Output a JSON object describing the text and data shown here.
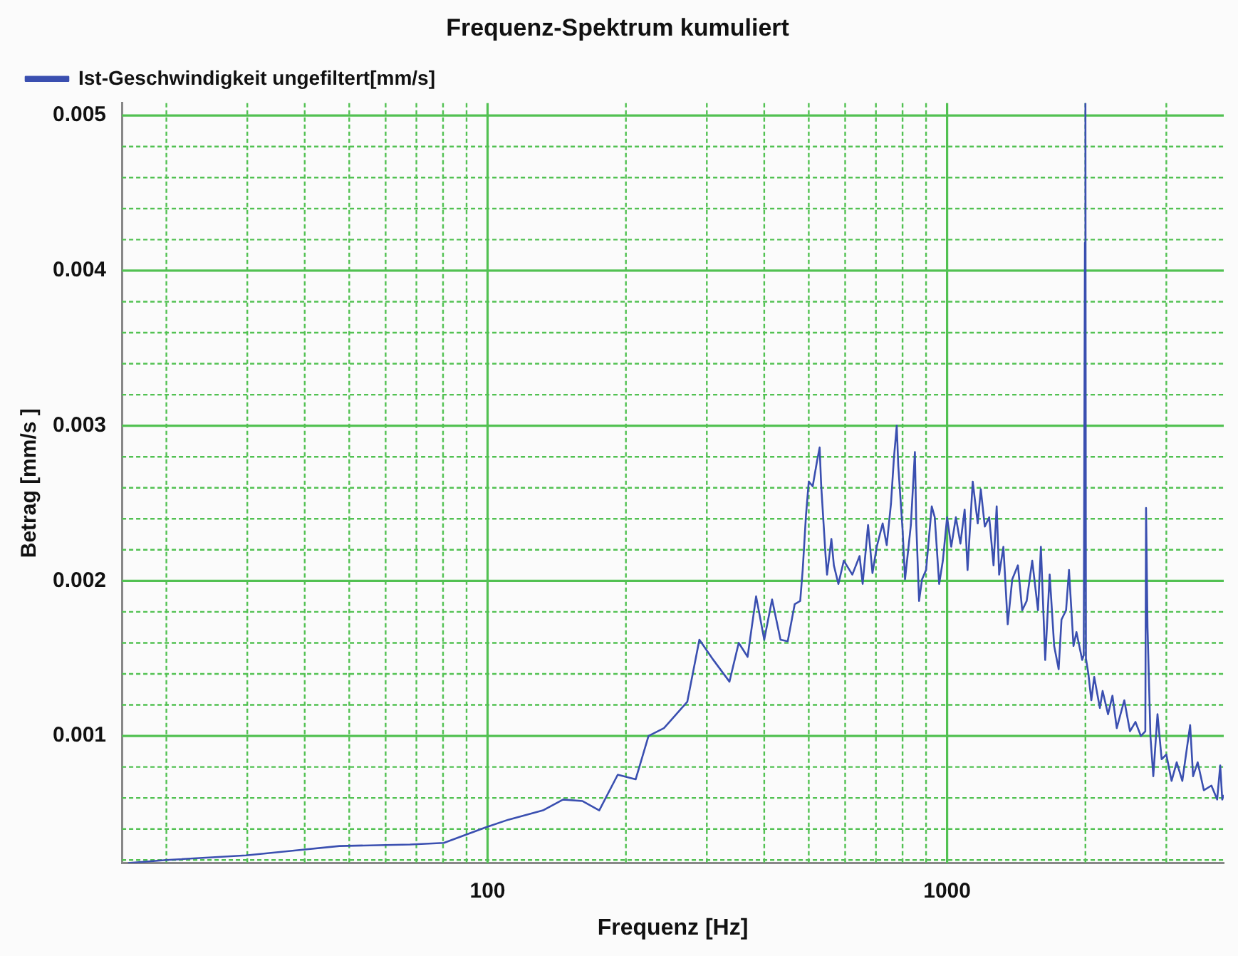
{
  "chart_data": {
    "type": "line",
    "title": "Frequenz-Spektrum kumuliert",
    "xlabel": "Frequenz [Hz]",
    "ylabel": "Betrag [mm/s ]",
    "log": "x",
    "grid": true,
    "legend": "top left",
    "marker": "none",
    "line_style": "solid",
    "xlim": [
      16,
      4000
    ],
    "ylim": [
      0.00018,
      0.00508
    ],
    "xticks": [
      {
        "value": 20,
        "label": null
      },
      {
        "value": 30,
        "label": null
      },
      {
        "value": 40,
        "label": null
      },
      {
        "value": 50,
        "label": null
      },
      {
        "value": 60,
        "label": null
      },
      {
        "value": 70,
        "label": null
      },
      {
        "value": 80,
        "label": null
      },
      {
        "value": 90,
        "label": null
      },
      100,
      {
        "value": 200,
        "label": null
      },
      {
        "value": 300,
        "label": null
      },
      {
        "value": 400,
        "label": null
      },
      {
        "value": 500,
        "label": null
      },
      {
        "value": 600,
        "label": null
      },
      {
        "value": 700,
        "label": null
      },
      {
        "value": 800,
        "label": null
      },
      {
        "value": 900,
        "label": null
      },
      1000,
      {
        "value": 2000,
        "label": null
      },
      {
        "value": 3000,
        "label": null
      }
    ],
    "yticks": [
      {
        "value": 0.0002,
        "label": null
      },
      {
        "value": 0.0004,
        "label": null
      },
      {
        "value": 0.0006,
        "label": null
      },
      {
        "value": 0.0008,
        "label": null
      },
      0.001,
      {
        "value": 0.0012,
        "label": null
      },
      {
        "value": 0.0014,
        "label": null
      },
      {
        "value": 0.0016,
        "label": null
      },
      {
        "value": 0.0018,
        "label": null
      },
      0.002,
      {
        "value": 0.0022,
        "label": null
      },
      {
        "value": 0.0024,
        "label": null
      },
      {
        "value": 0.0026,
        "label": null
      },
      {
        "value": 0.0028,
        "label": null
      },
      0.003,
      {
        "value": 0.0032,
        "label": null
      },
      {
        "value": 0.0034,
        "label": null
      },
      {
        "value": 0.0036,
        "label": null
      },
      {
        "value": 0.0038,
        "label": null
      },
      0.004,
      {
        "value": 0.0042,
        "label": null
      },
      {
        "value": 0.0044,
        "label": null
      },
      {
        "value": 0.0046,
        "label": null
      },
      {
        "value": 0.0048,
        "label": null
      },
      0.005
    ],
    "series": [
      {
        "name": "Ist-Geschwindigkeit ungefiltert[mm/s]",
        "color": "#3a4fb0",
        "x": [
          16.5,
          20,
          29.8,
          37.6,
          47.6,
          67.8,
          80.3,
          99,
          111,
          132,
          146,
          161,
          175,
          192,
          210,
          224,
          242,
          272,
          289,
          310,
          336,
          352,
          368,
          384,
          400,
          416,
          434,
          450,
          466,
          479,
          485,
          493,
          500,
          510,
          521,
          528,
          532,
          544,
          548,
          560,
          567,
          580,
          596,
          622,
          645,
          655,
          673,
          688,
          703,
          724,
          739,
          755,
          766,
          777,
          783,
          800,
          810,
          834,
          851,
          857,
          869,
          882,
          900,
          926,
          940,
          961,
          979,
          1000,
          1021,
          1045,
          1069,
          1092,
          1108,
          1137,
          1166,
          1184,
          1208,
          1235,
          1262,
          1282,
          1298,
          1326,
          1355,
          1386,
          1426,
          1457,
          1490,
          1532,
          1577,
          1600,
          1635,
          1672,
          1710,
          1749,
          1774,
          1815,
          1842,
          1884,
          1912,
          1968,
          1983,
          1995,
          2000,
          2005,
          2030,
          2060,
          2090,
          2150,
          2180,
          2240,
          2290,
          2340,
          2430,
          2500,
          2570,
          2640,
          2700,
          2710,
          2730,
          2770,
          2810,
          2870,
          2930,
          3000,
          3080,
          3160,
          3250,
          3380,
          3430,
          3510,
          3620,
          3760,
          3870,
          3930,
          3970,
          4000
        ],
        "values": [
          0.00018,
          0.0002,
          0.00023,
          0.00026,
          0.00029,
          0.0003,
          0.00031,
          0.00041,
          0.00046,
          0.00052,
          0.00059,
          0.00058,
          0.00052,
          0.00075,
          0.00072,
          0.001,
          0.00105,
          0.00122,
          0.00162,
          0.00149,
          0.00135,
          0.0016,
          0.00151,
          0.0019,
          0.00162,
          0.00188,
          0.00162,
          0.00161,
          0.00185,
          0.00187,
          0.00207,
          0.00242,
          0.00264,
          0.00261,
          0.00277,
          0.00286,
          0.00262,
          0.00216,
          0.00204,
          0.00227,
          0.0021,
          0.00198,
          0.00213,
          0.00204,
          0.00216,
          0.00198,
          0.00236,
          0.00205,
          0.00222,
          0.00237,
          0.00223,
          0.0025,
          0.00279,
          0.003,
          0.00274,
          0.00233,
          0.00201,
          0.00236,
          0.00283,
          0.00236,
          0.00187,
          0.00201,
          0.00207,
          0.00248,
          0.00241,
          0.00198,
          0.00213,
          0.00241,
          0.00222,
          0.00241,
          0.00224,
          0.00246,
          0.00207,
          0.00264,
          0.00237,
          0.00259,
          0.00235,
          0.00241,
          0.0021,
          0.00248,
          0.00204,
          0.00222,
          0.00172,
          0.00201,
          0.0021,
          0.00181,
          0.00187,
          0.00213,
          0.00181,
          0.00222,
          0.00149,
          0.00204,
          0.00158,
          0.00143,
          0.00175,
          0.00181,
          0.00207,
          0.00158,
          0.00167,
          0.00149,
          0.00152,
          0.00418,
          0.00508,
          0.0015,
          0.0014,
          0.00123,
          0.00138,
          0.00118,
          0.00129,
          0.00114,
          0.00126,
          0.00105,
          0.00123,
          0.00103,
          0.00109,
          0.001,
          0.00103,
          0.00247,
          0.0017,
          0.001,
          0.00074,
          0.00114,
          0.00085,
          0.00088,
          0.00071,
          0.00083,
          0.00071,
          0.00107,
          0.00074,
          0.00083,
          0.00065,
          0.00068,
          0.00059,
          0.00081,
          0.00059,
          0.00062
        ]
      }
    ]
  }
}
